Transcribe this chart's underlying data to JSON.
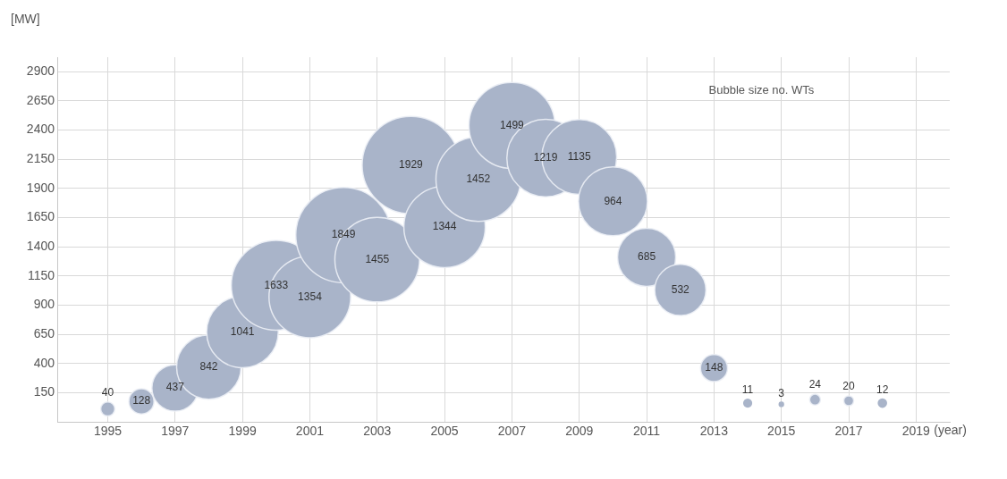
{
  "chart_data": {
    "type": "bubble",
    "ylabel": "[MW]",
    "xlabel": "(year)",
    "annotations": [
      "Bubble size no. WTs"
    ],
    "x": [
      1995,
      1996,
      1997,
      1998,
      1999,
      2000,
      2001,
      2002,
      2003,
      2004,
      2005,
      2006,
      2007,
      2008,
      2009,
      2010,
      2011,
      2012,
      2013,
      2014,
      2015,
      2016,
      2017,
      2018
    ],
    "series": [
      {
        "color": "#a9b4c9",
        "values": [
          10,
          75,
          190,
          370,
          670,
          1070,
          970,
          1500,
          1290,
          2100,
          1570,
          1980,
          2440,
          2160,
          2170,
          1790,
          1310,
          1030,
          360,
          60,
          50,
          90,
          80,
          60
        ],
        "sizes": [
          40,
          128,
          437,
          842,
          1041,
          1633,
          1354,
          1849,
          1455,
          1929,
          1344,
          1452,
          1499,
          1219,
          1135,
          964,
          685,
          532,
          148,
          11,
          3,
          24,
          20,
          12
        ],
        "value_labels": [
          "40",
          "128",
          "437",
          "842",
          "1041",
          "1633",
          "1354",
          "1849",
          "1455",
          "1929",
          "1344",
          "1452",
          "1499",
          "1219",
          "1135",
          "964",
          "685",
          "532",
          "148",
          "11",
          "3",
          "24",
          "20",
          "12"
        ]
      }
    ],
    "xlim": [
      1993.5,
      2020
    ],
    "xticks": [
      1995,
      1997,
      1999,
      2001,
      2003,
      2005,
      2007,
      2009,
      2011,
      2013,
      2015,
      2017,
      2019
    ],
    "ylim": [
      -100,
      3025
    ],
    "yticks": [
      150,
      400,
      650,
      900,
      1150,
      1400,
      1650,
      1900,
      2150,
      2400,
      2650,
      2900
    ],
    "grid": true,
    "legend": false
  }
}
